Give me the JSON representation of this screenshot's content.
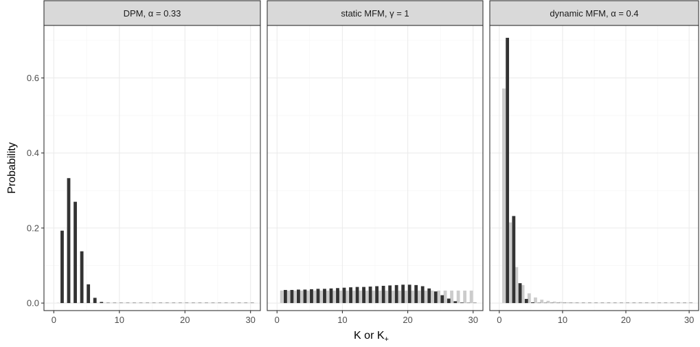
{
  "chart_data": {
    "type": "bar",
    "xlabel": "K or K",
    "xlabel_subscript": "+",
    "ylabel": "Probability",
    "xlim": [
      -1.5,
      31.5
    ],
    "ylim": [
      -0.02,
      0.74
    ],
    "x_ticks": [
      0,
      10,
      20,
      30
    ],
    "y_ticks": [
      0.0,
      0.2,
      0.4,
      0.6
    ],
    "y_tick_labels": [
      "0.0",
      "0.2",
      "0.4",
      "0.6"
    ],
    "grid": true,
    "colors": {
      "series_dark": "#333333",
      "series_light": "#cccccc",
      "strip_fill": "#d9d9d9",
      "grid_major": "#ebebeb",
      "grid_minor": "#f4f4f4",
      "panel_border": "#333333"
    },
    "panels": [
      {
        "strip_label": "DPM, α = 0.33",
        "series": [
          {
            "shade": "light",
            "x": [
              1,
              2,
              3,
              4,
              5,
              6,
              7,
              8,
              9,
              10,
              11,
              12,
              13,
              14,
              15,
              16,
              17,
              18,
              19,
              20,
              21,
              22,
              23,
              24,
              25,
              26,
              27,
              28,
              29,
              30
            ],
            "values": [
              0,
              0,
              0,
              0,
              0,
              0,
              0,
              0,
              0,
              0,
              0,
              0,
              0,
              0,
              0,
              0,
              0,
              0,
              0,
              0,
              0,
              0,
              0,
              0,
              0,
              0,
              0,
              0,
              0,
              0
            ]
          },
          {
            "shade": "dark",
            "x": [
              1,
              2,
              3,
              4,
              5,
              6,
              7,
              8,
              9,
              10,
              11,
              12,
              13,
              14,
              15,
              16,
              17,
              18,
              19,
              20,
              21,
              22,
              23,
              24,
              25,
              26,
              27,
              28,
              29,
              30
            ],
            "values": [
              0.193,
              0.333,
              0.27,
              0.138,
              0.05,
              0.014,
              0.003,
              0.0005,
              0,
              0,
              0,
              0,
              0,
              0,
              0,
              0,
              0,
              0,
              0,
              0,
              0,
              0,
              0,
              0,
              0,
              0,
              0,
              0,
              0,
              0
            ]
          }
        ]
      },
      {
        "strip_label": "static MFM, γ = 1",
        "series": [
          {
            "shade": "light",
            "x": [
              1,
              2,
              3,
              4,
              5,
              6,
              7,
              8,
              9,
              10,
              11,
              12,
              13,
              14,
              15,
              16,
              17,
              18,
              19,
              20,
              21,
              22,
              23,
              24,
              25,
              26,
              27,
              28,
              29,
              30
            ],
            "values": [
              0.0333,
              0.0333,
              0.0333,
              0.0333,
              0.0333,
              0.0333,
              0.0333,
              0.0333,
              0.0333,
              0.0333,
              0.0333,
              0.0333,
              0.0333,
              0.0333,
              0.0333,
              0.0333,
              0.0333,
              0.0333,
              0.0333,
              0.0333,
              0.0333,
              0.0333,
              0.0333,
              0.0333,
              0.0333,
              0.0333,
              0.0333,
              0.0333,
              0.0333,
              0.0333
            ]
          },
          {
            "shade": "dark",
            "x": [
              1,
              2,
              3,
              4,
              5,
              6,
              7,
              8,
              9,
              10,
              11,
              12,
              13,
              14,
              15,
              16,
              17,
              18,
              19,
              20,
              21,
              22,
              23,
              24,
              25,
              26,
              27,
              28,
              29,
              30
            ],
            "values": [
              0.035,
              0.035,
              0.036,
              0.036,
              0.037,
              0.038,
              0.038,
              0.039,
              0.04,
              0.041,
              0.042,
              0.043,
              0.043,
              0.044,
              0.045,
              0.046,
              0.047,
              0.048,
              0.049,
              0.049,
              0.048,
              0.045,
              0.039,
              0.031,
              0.021,
              0.012,
              0.005,
              0.0015,
              0.0003,
              0
            ]
          }
        ]
      },
      {
        "strip_label": "dynamic MFM, α = 0.4",
        "series": [
          {
            "shade": "light",
            "x": [
              1,
              2,
              3,
              4,
              5,
              6,
              7,
              8,
              9,
              10,
              11,
              12,
              13,
              14,
              15,
              16,
              17,
              18,
              19,
              20,
              21,
              22,
              23,
              24,
              25,
              26,
              27,
              28,
              29,
              30
            ],
            "values": [
              0.572,
              0.215,
              0.096,
              0.048,
              0.026,
              0.015,
              0.009,
              0.006,
              0.004,
              0.003,
              0.002,
              0.0015,
              0.001,
              0.0008,
              0.0006,
              0.0005,
              0.0004,
              0.0003,
              0.0003,
              0.0002,
              0.0002,
              0.0002,
              0.0001,
              0.0001,
              0.0001,
              0.0001,
              0.0001,
              0.0001,
              0.0001,
              0.0001
            ]
          },
          {
            "shade": "dark",
            "x": [
              1,
              2,
              3,
              4,
              5,
              6,
              7,
              8,
              9,
              10,
              11,
              12,
              13,
              14,
              15,
              16,
              17,
              18,
              19,
              20,
              21,
              22,
              23,
              24,
              25,
              26,
              27,
              28,
              29,
              30
            ],
            "values": [
              0.707,
              0.232,
              0.053,
              0.011,
              0.002,
              0.0004,
              0.0001,
              0,
              0,
              0,
              0,
              0,
              0,
              0,
              0,
              0,
              0,
              0,
              0,
              0,
              0,
              0,
              0,
              0,
              0,
              0,
              0,
              0,
              0,
              0
            ]
          }
        ]
      }
    ]
  }
}
